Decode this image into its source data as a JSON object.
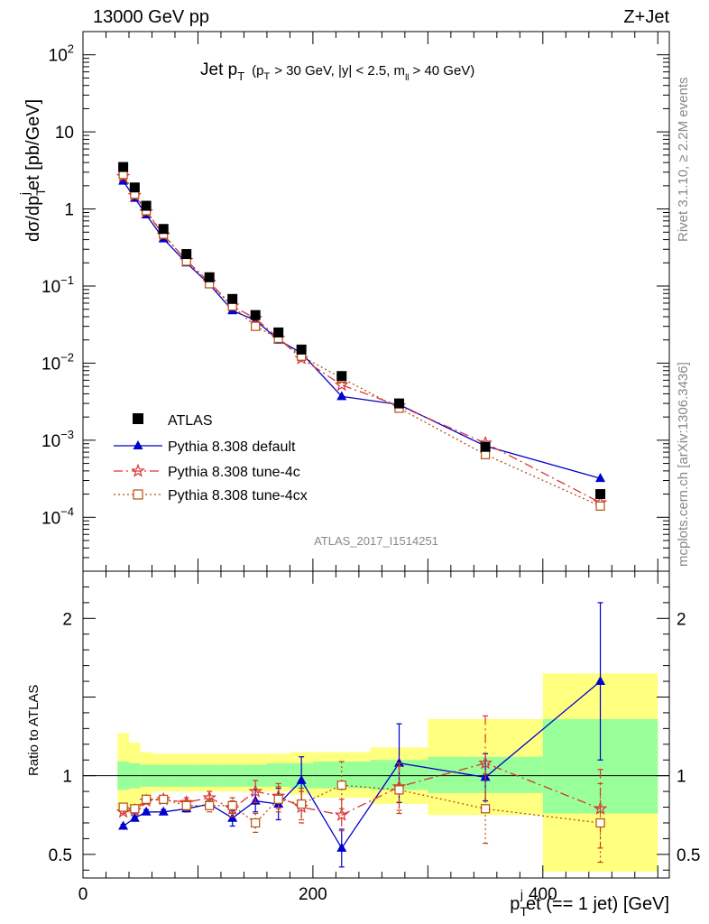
{
  "header": {
    "left": "13000 GeV pp",
    "right": "Z+Jet"
  },
  "plot_title": {
    "main": "Jet p",
    "main_sub": "T",
    "cond_open": "(p",
    "cond_sub": "T",
    "cond_mid": "> 30 GeV, |y| < 2.5, m",
    "cond_sub2": "ll",
    "cond_close": "> 40 GeV)"
  },
  "side_labels": {
    "rivet": "Rivet 3.1.10, ≥ 2.2M events",
    "mcplots": "mcplots.cern.ch [arXiv:1306.3436]"
  },
  "watermark": "ATLAS_2017_I1514251",
  "axes": {
    "ylabel_main": {
      "a": "dσ/dp",
      "sub": "T",
      "sup": "j",
      "b": "et [pb/GeV]"
    },
    "ylabel_ratio": "Ratio to ATLAS",
    "xlabel": {
      "a": "p",
      "sub": "T",
      "sup": "j",
      "b": "et (== 1 jet) [GeV]"
    }
  },
  "legend": {
    "entries": [
      {
        "key": "atlas",
        "label": "ATLAS"
      },
      {
        "key": "def",
        "label": "Pythia 8.308 default"
      },
      {
        "key": "t4c",
        "label": "Pythia 8.308 tune-4c"
      },
      {
        "key": "t4cx",
        "label": "Pythia 8.308 tune-4cx"
      }
    ]
  },
  "chart_data": {
    "type": "line",
    "x_unit": "GeV",
    "xlim": [
      0,
      510
    ],
    "main": {
      "yscale": "log",
      "ylim": [
        2e-05,
        200
      ],
      "yticks": [
        {
          "v": 0.0001,
          "b": "10",
          "e": "−4"
        },
        {
          "v": 0.001,
          "b": "10",
          "e": "−3"
        },
        {
          "v": 0.01,
          "b": "10",
          "e": "−2"
        },
        {
          "v": 0.1,
          "b": "10",
          "e": "−1"
        },
        {
          "v": 1,
          "b": "1",
          "e": ""
        },
        {
          "v": 10,
          "b": "10",
          "e": ""
        },
        {
          "v": 100,
          "b": "10",
          "e": "2"
        }
      ]
    },
    "ratio": {
      "ylim": [
        0.35,
        2.3
      ],
      "yticks": [
        {
          "v": 0.5,
          "label": "0.5"
        },
        {
          "v": 1,
          "label": "1"
        },
        {
          "v": 2,
          "label": "2"
        }
      ]
    },
    "xticks": [
      {
        "v": 0,
        "label": "0"
      },
      {
        "v": 200,
        "label": "200"
      },
      {
        "v": 400,
        "label": "400"
      }
    ],
    "bins": [
      {
        "lo": 30,
        "hi": 40,
        "x": 35
      },
      {
        "lo": 40,
        "hi": 50,
        "x": 45
      },
      {
        "lo": 50,
        "hi": 60,
        "x": 55
      },
      {
        "lo": 60,
        "hi": 80,
        "x": 70
      },
      {
        "lo": 80,
        "hi": 100,
        "x": 90
      },
      {
        "lo": 100,
        "hi": 120,
        "x": 110
      },
      {
        "lo": 120,
        "hi": 140,
        "x": 130
      },
      {
        "lo": 140,
        "hi": 160,
        "x": 150
      },
      {
        "lo": 160,
        "hi": 180,
        "x": 170
      },
      {
        "lo": 180,
        "hi": 200,
        "x": 190
      },
      {
        "lo": 200,
        "hi": 250,
        "x": 225
      },
      {
        "lo": 250,
        "hi": 300,
        "x": 275
      },
      {
        "lo": 300,
        "hi": 400,
        "x": 350
      },
      {
        "lo": 400,
        "hi": 500,
        "x": 450
      }
    ],
    "atlas": {
      "name": "ATLAS",
      "y": [
        3.5,
        1.9,
        1.1,
        0.55,
        0.26,
        0.13,
        0.068,
        0.042,
        0.025,
        0.015,
        0.0068,
        0.003,
        0.00082,
        0.0002
      ],
      "band_green": [
        [
          0.91,
          1.09
        ],
        [
          0.92,
          1.08
        ],
        [
          0.93,
          1.07
        ],
        [
          0.93,
          1.07
        ],
        [
          0.93,
          1.07
        ],
        [
          0.93,
          1.07
        ],
        [
          0.93,
          1.07
        ],
        [
          0.93,
          1.07
        ],
        [
          0.93,
          1.08
        ],
        [
          0.92,
          1.08
        ],
        [
          0.92,
          1.09
        ],
        [
          0.91,
          1.1
        ],
        [
          0.89,
          1.12
        ],
        [
          0.76,
          1.36
        ]
      ],
      "band_yellow": [
        [
          0.78,
          1.27
        ],
        [
          0.8,
          1.21
        ],
        [
          0.86,
          1.15
        ],
        [
          0.9,
          1.14
        ],
        [
          0.9,
          1.14
        ],
        [
          0.9,
          1.14
        ],
        [
          0.9,
          1.14
        ],
        [
          0.9,
          1.14
        ],
        [
          0.9,
          1.14
        ],
        [
          0.88,
          1.15
        ],
        [
          0.86,
          1.15
        ],
        [
          0.82,
          1.18
        ],
        [
          0.75,
          1.36
        ],
        [
          0.39,
          1.65
        ]
      ]
    },
    "series": [
      {
        "key": "def",
        "name": "Pythia 8.308 default",
        "color": "#0000cc",
        "dash": "",
        "marker": "triangle",
        "y": [
          2.3,
          1.38,
          0.84,
          0.41,
          0.2,
          0.105,
          0.048,
          0.036,
          0.02,
          0.0135,
          0.0037,
          0.0029,
          0.00084,
          0.00032
        ],
        "ratio": [
          0.68,
          0.73,
          0.77,
          0.77,
          0.79,
          0.82,
          0.73,
          0.84,
          0.82,
          0.97,
          0.54,
          1.08,
          0.99,
          1.6
        ],
        "ratio_err": [
          0.01,
          0.015,
          0.015,
          0.015,
          0.02,
          0.03,
          0.05,
          0.07,
          0.1,
          0.15,
          0.12,
          0.25,
          0.15,
          0.5
        ]
      },
      {
        "key": "t4c",
        "name": "Pythia 8.308 tune-4c",
        "color": "#dd3333",
        "dash": "10,4,2,4",
        "marker": "star",
        "y": [
          2.65,
          1.5,
          0.92,
          0.46,
          0.215,
          0.112,
          0.055,
          0.038,
          0.021,
          0.0115,
          0.0052,
          0.0028,
          0.00092,
          0.000155
        ],
        "ratio": [
          0.77,
          0.78,
          0.84,
          0.85,
          0.83,
          0.86,
          0.79,
          0.9,
          0.87,
          0.8,
          0.75,
          0.93,
          1.08,
          0.79
        ],
        "ratio_err": [
          0.01,
          0.015,
          0.02,
          0.02,
          0.03,
          0.04,
          0.05,
          0.07,
          0.08,
          0.1,
          0.1,
          0.15,
          0.3,
          0.25
        ]
      },
      {
        "key": "t4cx",
        "name": "Pythia 8.308 tune-4cx",
        "color": "#b5500b",
        "dash": "2,3",
        "marker": "square",
        "y": [
          2.8,
          1.55,
          0.95,
          0.47,
          0.21,
          0.107,
          0.055,
          0.03,
          0.021,
          0.0123,
          0.0064,
          0.0026,
          0.00065,
          0.00014
        ],
        "ratio": [
          0.8,
          0.79,
          0.85,
          0.85,
          0.81,
          0.81,
          0.81,
          0.7,
          0.85,
          0.82,
          0.94,
          0.91,
          0.79,
          0.7
        ],
        "ratio_err": [
          0.01,
          0.015,
          0.02,
          0.02,
          0.03,
          0.04,
          0.05,
          0.06,
          0.08,
          0.1,
          0.15,
          0.15,
          0.22,
          0.25
        ]
      }
    ]
  }
}
